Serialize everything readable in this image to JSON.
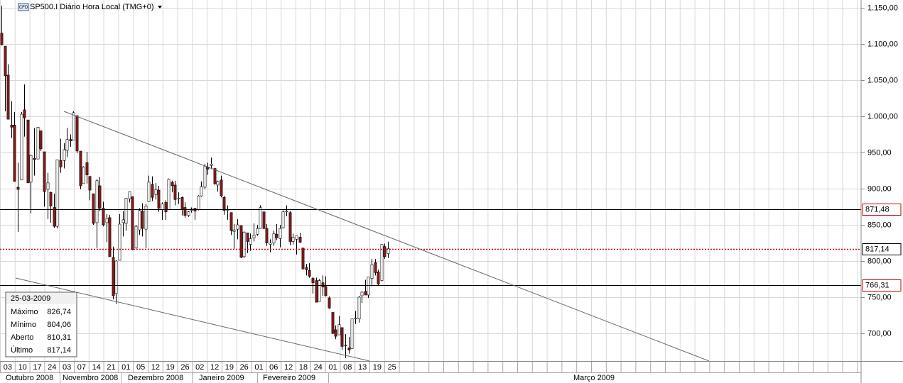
{
  "chart_data": {
    "type": "candlestick",
    "badge": "CFD",
    "title": "SP500.I Diário Hora Local (TMG+0)",
    "ohlc": [
      [
        1115,
        1153,
        1098,
        1099
      ],
      [
        1097,
        1097,
        1007,
        1056
      ],
      [
        1057,
        1072,
        996,
        996
      ],
      [
        988,
        1021,
        970,
        985
      ],
      [
        988,
        1006,
        910,
        910
      ],
      [
        902,
        936,
        840,
        899
      ],
      [
        912,
        1006,
        912,
        1003
      ],
      [
        1009,
        1044,
        972,
        998
      ],
      [
        995,
        995,
        908,
        908
      ],
      [
        909,
        947,
        866,
        946
      ],
      [
        942,
        984,
        918,
        940
      ],
      [
        941,
        985,
        941,
        985
      ],
      [
        980,
        980,
        952,
        955
      ],
      [
        951,
        951,
        875,
        896
      ],
      [
        899,
        922,
        858,
        908
      ],
      [
        895,
        896,
        853,
        876
      ],
      [
        874,
        893,
        846,
        848
      ],
      [
        848,
        940,
        845,
        940
      ],
      [
        939,
        969,
        922,
        930
      ],
      [
        939,
        963,
        928,
        954
      ],
      [
        953,
        984,
        944,
        968
      ],
      [
        968,
        975,
        958,
        966
      ],
      [
        967,
        1007,
        967,
        1005
      ],
      [
        1001,
        1001,
        949,
        952
      ],
      [
        952,
        952,
        899,
        904
      ],
      [
        907,
        931,
        907,
        930
      ],
      [
        936,
        951,
        907,
        919
      ],
      [
        917,
        917,
        884,
        898
      ],
      [
        893,
        893,
        850,
        852
      ],
      [
        853,
        913,
        818,
        911
      ],
      [
        904,
        916,
        869,
        873
      ],
      [
        873,
        882,
        848,
        850
      ],
      [
        853,
        865,
        826,
        859
      ],
      [
        860,
        864,
        806,
        806
      ],
      [
        805,
        820,
        747,
        752
      ],
      [
        755,
        801,
        741,
        800
      ],
      [
        801,
        865,
        801,
        851
      ],
      [
        853,
        869,
        834,
        857
      ],
      [
        852,
        887,
        842,
        887
      ],
      [
        886,
        896,
        881,
        896
      ],
      [
        889,
        889,
        815,
        816
      ],
      [
        818,
        850,
        817,
        848
      ],
      [
        843,
        873,
        836,
        870
      ],
      [
        869,
        880,
        834,
        845
      ],
      [
        844,
        879,
        818,
        876
      ],
      [
        882,
        918,
        882,
        909
      ],
      [
        906,
        917,
        883,
        888
      ],
      [
        892,
        908,
        885,
        899
      ],
      [
        898,
        904,
        868,
        873
      ],
      [
        871,
        881,
        857,
        879
      ],
      [
        881,
        884,
        857,
        868
      ],
      [
        871,
        914,
        871,
        913
      ],
      [
        909,
        911,
        895,
        904
      ],
      [
        905,
        911,
        877,
        885
      ],
      [
        887,
        895,
        879,
        887
      ],
      [
        888,
        889,
        863,
        871
      ],
      [
        874,
        881,
        860,
        863
      ],
      [
        863,
        869,
        861,
        868
      ],
      [
        870,
        874,
        867,
        872
      ],
      [
        873,
        873,
        857,
        869
      ],
      [
        871,
        891,
        870,
        890
      ],
      [
        890,
        910,
        889,
        903
      ],
      [
        902,
        934,
        899,
        931
      ],
      [
        930,
        936,
        919,
        927
      ],
      [
        932,
        943,
        927,
        934
      ],
      [
        928,
        928,
        905,
        907
      ],
      [
        905,
        911,
        896,
        910
      ],
      [
        912,
        918,
        888,
        890
      ],
      [
        888,
        890,
        864,
        870
      ],
      [
        871,
        877,
        857,
        871
      ],
      [
        867,
        867,
        836,
        842
      ],
      [
        841,
        851,
        817,
        843
      ],
      [
        844,
        858,
        830,
        850
      ],
      [
        849,
        849,
        804,
        805
      ],
      [
        806,
        841,
        804,
        840
      ],
      [
        839,
        839,
        811,
        827
      ],
      [
        823,
        838,
        814,
        831
      ],
      [
        832,
        852,
        827,
        836
      ],
      [
        837,
        850,
        835,
        845
      ],
      [
        845,
        877,
        845,
        874
      ],
      [
        868,
        868,
        844,
        845
      ],
      [
        845,
        851,
        821,
        825
      ],
      [
        823,
        830,
        812,
        825
      ],
      [
        825,
        842,
        821,
        838
      ],
      [
        837,
        851,
        829,
        832
      ],
      [
        831,
        850,
        819,
        845
      ],
      [
        846,
        870,
        845,
        868
      ],
      [
        868,
        877,
        862,
        869
      ],
      [
        867,
        869,
        822,
        827
      ],
      [
        827,
        838,
        823,
        833
      ],
      [
        830,
        835,
        809,
        835
      ],
      [
        833,
        839,
        825,
        826
      ],
      [
        818,
        818,
        789,
        789
      ],
      [
        791,
        796,
        780,
        788
      ],
      [
        787,
        797,
        777,
        779
      ],
      [
        776,
        778,
        755,
        770
      ],
      [
        773,
        777,
        743,
        743
      ],
      [
        744,
        775,
        744,
        773
      ],
      [
        770,
        780,
        752,
        764
      ],
      [
        765,
        779,
        751,
        752
      ],
      [
        749,
        751,
        734,
        735
      ],
      [
        729,
        729,
        699,
        700
      ],
      [
        705,
        711,
        692,
        696
      ],
      [
        698,
        724,
        698,
        712
      ],
      [
        708,
        708,
        677,
        682
      ],
      [
        684,
        699,
        666,
        683
      ],
      [
        680,
        695,
        672,
        677
      ],
      [
        679,
        720,
        679,
        720
      ],
      [
        720,
        731,
        713,
        721
      ],
      [
        720,
        752,
        715,
        750
      ],
      [
        752,
        758,
        742,
        757
      ],
      [
        758,
        774,
        753,
        753
      ],
      [
        753,
        778,
        749,
        778
      ],
      [
        776,
        803,
        765,
        795
      ],
      [
        798,
        803,
        780,
        784
      ],
      [
        785,
        788,
        766,
        768
      ],
      [
        773,
        823,
        772,
        823
      ],
      [
        820,
        824,
        803,
        806
      ],
      [
        810.31,
        826.74,
        804.06,
        817.14
      ]
    ],
    "up_color": "#ffffff",
    "down_color": "#8b1a1a",
    "ylim": [
      661.8,
      1160.8
    ],
    "yticks": [
      {
        "value": 700,
        "label": "700,00"
      },
      {
        "value": 750,
        "label": "750,00"
      },
      {
        "value": 800,
        "label": "800,00"
      },
      {
        "value": 850,
        "label": "850,00"
      },
      {
        "value": 900,
        "label": "900,00"
      },
      {
        "value": 950,
        "label": "950,00"
      },
      {
        "value": 1000,
        "label": "1.000,00"
      },
      {
        "value": 1050,
        "label": "1.050,00"
      },
      {
        "value": 1100,
        "label": "1.100,00"
      },
      {
        "value": 1150,
        "label": "1.150,00"
      }
    ],
    "grid": true,
    "levels": [
      {
        "value": 871.48,
        "label": "871,48",
        "color": "#c00000",
        "style": "solid"
      },
      {
        "value": 817.14,
        "label": "817,14",
        "color": "#000000",
        "style": "dotted"
      },
      {
        "value": 766.31,
        "label": "766,31",
        "color": "#c00000",
        "style": "solid"
      }
    ],
    "day_labels": [
      "03",
      "10",
      "17",
      "24",
      "03",
      "07",
      "14",
      "21",
      "01",
      "05",
      "12",
      "19",
      "26",
      "02",
      "12",
      "19",
      "26",
      "01",
      "06",
      "12",
      "18",
      "24",
      "01",
      "08",
      "13",
      "19",
      "25"
    ],
    "month_labels": [
      "Outubro 2008",
      "Novembro 2008",
      "Dezembro 2008",
      "Janeiro 2009",
      "Fevereiro 2009",
      "Março 2009"
    ],
    "info": {
      "date": "25-03-2009",
      "rows": [
        [
          "Máximo",
          "826,74"
        ],
        [
          "Mínimo",
          "804,06"
        ],
        [
          "Aberto",
          "810,31"
        ],
        [
          "Último",
          "817,14"
        ]
      ]
    }
  }
}
